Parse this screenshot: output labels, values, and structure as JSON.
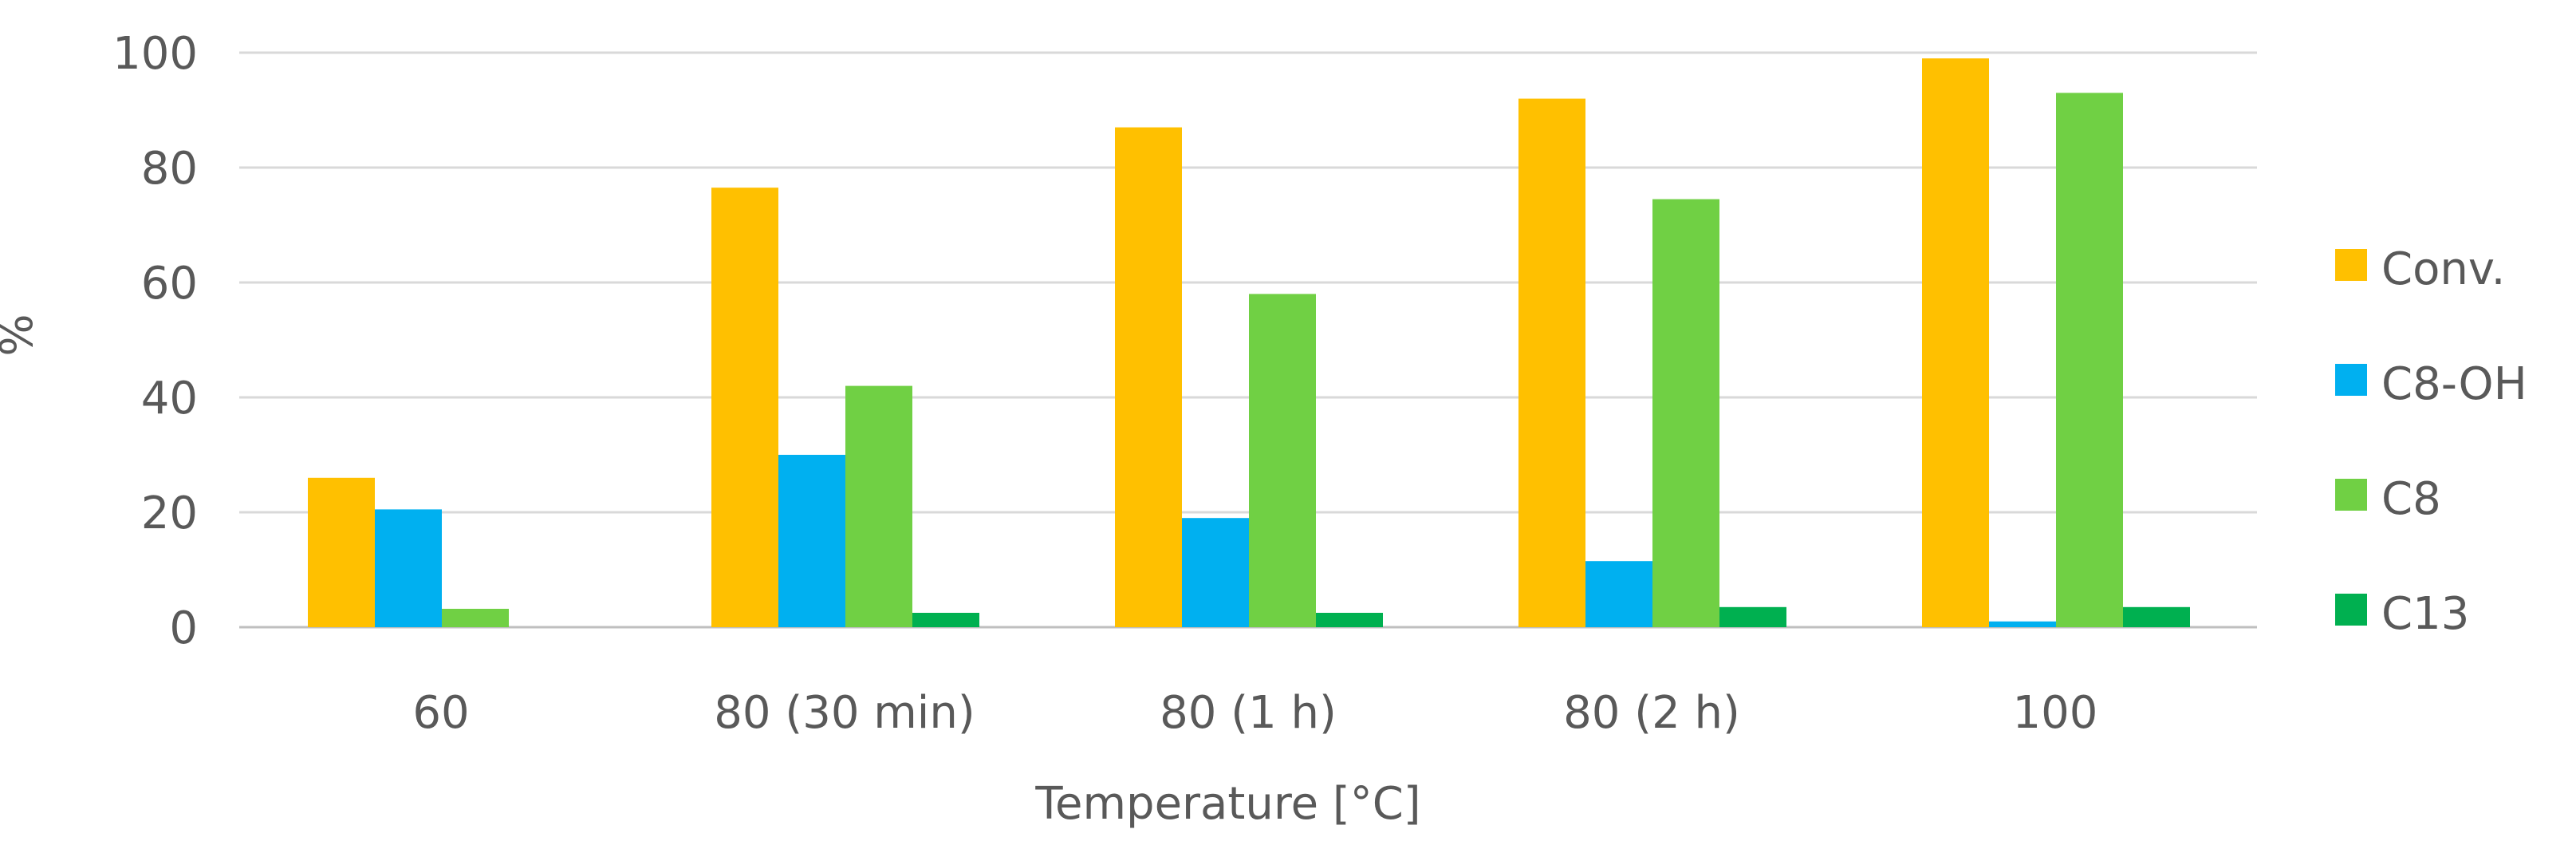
{
  "chart_data": {
    "type": "bar",
    "title": "",
    "xlabel": "Temperature [°C]",
    "ylabel": "%",
    "ylim": [
      0,
      100
    ],
    "yticks": [
      0,
      20,
      40,
      60,
      80,
      100
    ],
    "grid": true,
    "legend_position": "right",
    "categories": [
      "60",
      "80 (30 min)",
      "80 (1 h)",
      "80 (2 h)",
      "100"
    ],
    "series": [
      {
        "name": "Conv.",
        "color": "#FFC000",
        "values": [
          26,
          76.5,
          87,
          92,
          99
        ]
      },
      {
        "name": "C8-OH",
        "color": "#00B0F0",
        "values": [
          20.5,
          30,
          19,
          11.5,
          1
        ]
      },
      {
        "name": "C8",
        "color": "#70D044",
        "values": [
          3.2,
          42,
          58,
          74.5,
          93
        ]
      },
      {
        "name": "C13",
        "color": "#00B050",
        "values": [
          0,
          2.5,
          2.5,
          3.5,
          3.5
        ]
      }
    ]
  }
}
